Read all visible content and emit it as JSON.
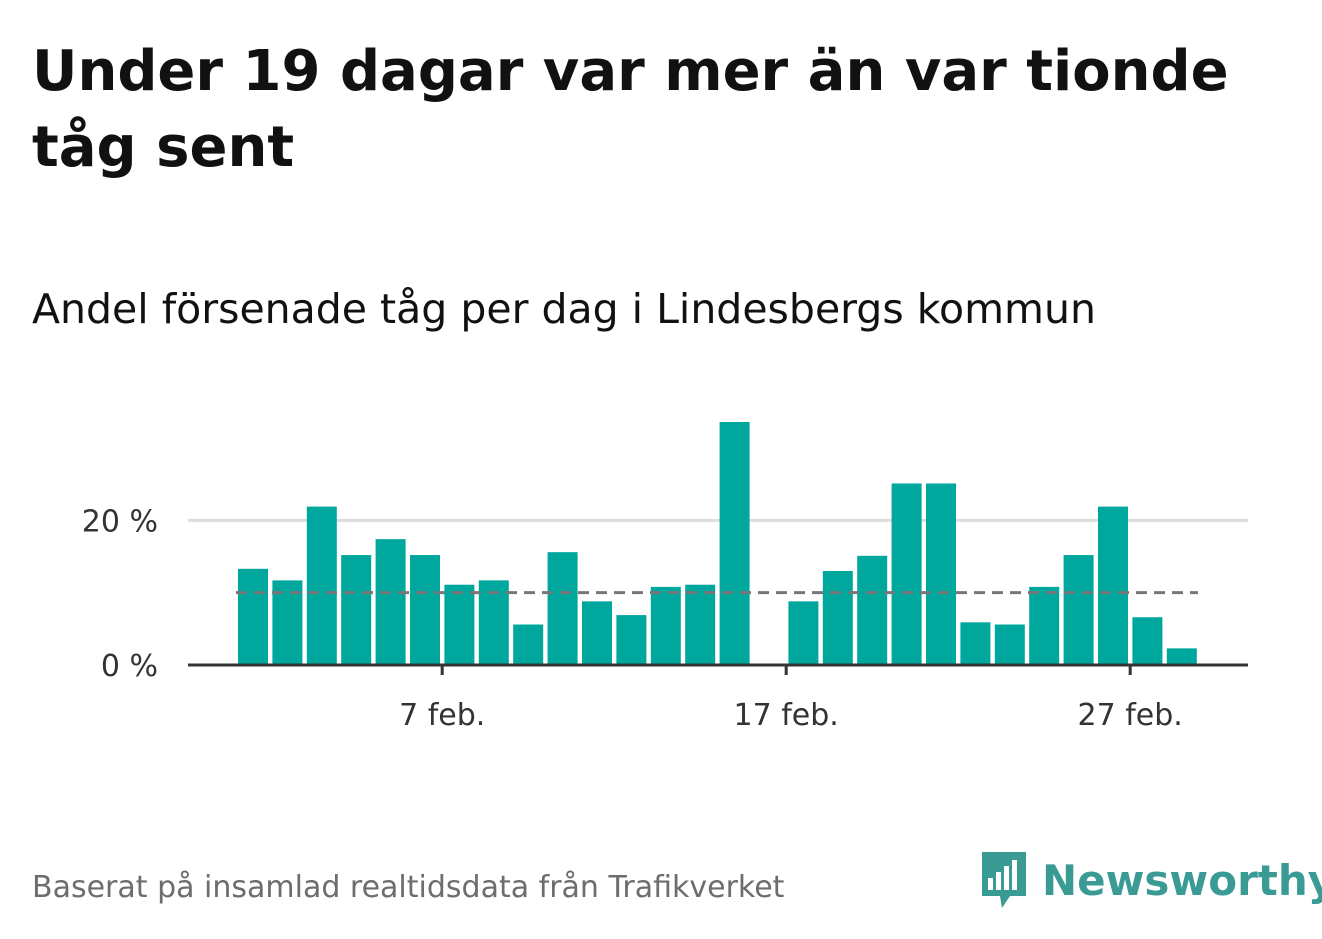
{
  "title": "Under 19 dagar var mer än var tionde tåg sent",
  "subtitle": "Andel försenade tåg per dag i Lindesbergs kommun",
  "source": "Baserat på insamlad realtidsdata från Trafikverket",
  "brand": "Newsworthy",
  "colors": {
    "bar": "#00a79d",
    "reference_line": "#777777",
    "grid": "#dddddd",
    "axis": "#333333",
    "brand": "#3a9a94"
  },
  "chart_data": {
    "type": "bar",
    "x": [
      "1 feb.",
      "2 feb.",
      "3 feb.",
      "4 feb.",
      "5 feb.",
      "6 feb.",
      "7 feb.",
      "8 feb.",
      "9 feb.",
      "10 feb.",
      "11 feb.",
      "12 feb.",
      "13 feb.",
      "14 feb.",
      "15 feb.",
      "16 feb.",
      "17 feb.",
      "18 feb.",
      "19 feb.",
      "20 feb.",
      "21 feb.",
      "22 feb.",
      "23 feb.",
      "24 feb.",
      "25 feb.",
      "26 feb.",
      "27 feb.",
      "28 feb."
    ],
    "values": [
      13.3,
      11.7,
      21.9,
      15.2,
      17.4,
      15.2,
      11.1,
      11.7,
      5.6,
      15.6,
      8.8,
      6.9,
      10.8,
      11.1,
      33.6,
      0,
      8.8,
      13.0,
      15.1,
      25.1,
      25.1,
      5.9,
      5.6,
      10.8,
      15.2,
      21.9,
      6.6,
      2.3
    ],
    "reference_line": 10,
    "ylim": [
      0,
      33.6
    ],
    "y_ticks": [
      {
        "value": 0,
        "label": "0 %"
      },
      {
        "value": 20,
        "label": "20 %"
      }
    ],
    "x_ticks": [
      {
        "index": 6,
        "label": "7 feb."
      },
      {
        "index": 16,
        "label": "17 feb."
      },
      {
        "index": 26,
        "label": "27 feb."
      }
    ],
    "grid": true,
    "xlabel": "",
    "ylabel": ""
  }
}
